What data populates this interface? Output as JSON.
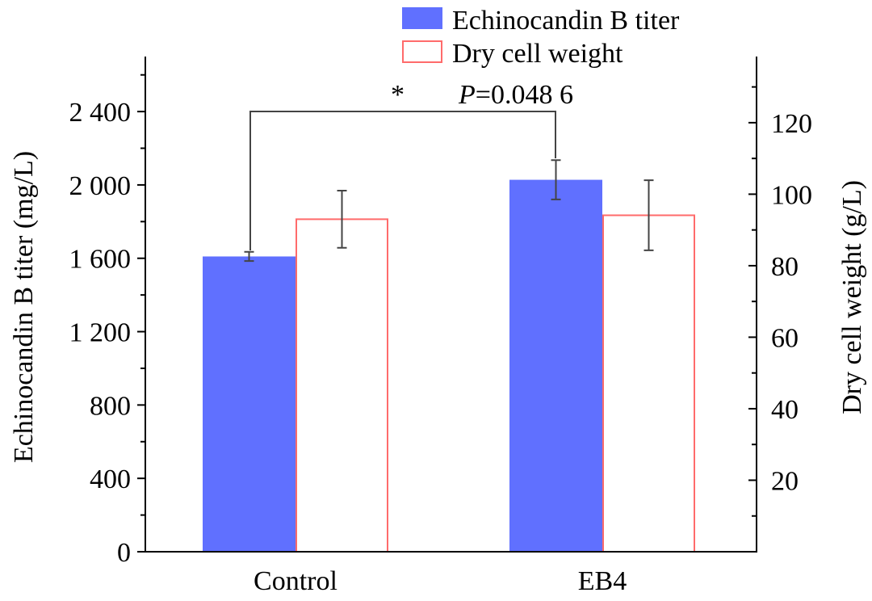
{
  "chart_data": {
    "type": "bar",
    "title": "",
    "categories": [
      "Control",
      "EB4"
    ],
    "series": [
      {
        "name": "Echinocandin B titer",
        "axis": "left",
        "style": "filled",
        "color": "#6070ff",
        "values": [
          1610,
          2028
        ],
        "errors": [
          25,
          107
        ]
      },
      {
        "name": "Dry cell weight",
        "axis": "right",
        "style": "outline",
        "color": "#ff6b6b",
        "values": [
          93.0,
          94.1
        ],
        "errors": [
          8.0,
          9.8
        ]
      }
    ],
    "ylabel": "Echinocandin B titer (mg/L)",
    "ylabel_right": "Dry cell weight (g/L)",
    "ylim": [
      0,
      2700
    ],
    "ylim_right": [
      0,
      138.5
    ],
    "yticks": [
      0,
      400,
      800,
      1200,
      1600,
      2000,
      2400
    ],
    "ytick_labels": [
      "0",
      "400",
      "800",
      "1 200",
      "1 600",
      "2 000",
      "2 400"
    ],
    "yticks_right": [
      20,
      40,
      60,
      80,
      100,
      120
    ],
    "ytick_labels_right": [
      "20",
      "40",
      "60",
      "80",
      "100",
      "120"
    ],
    "legend_placement": "top-center",
    "annotation": {
      "star": "*",
      "p_symbol": "P",
      "p_text": "=0.048 6",
      "between": [
        "Control",
        "EB4"
      ]
    },
    "grid": false
  }
}
